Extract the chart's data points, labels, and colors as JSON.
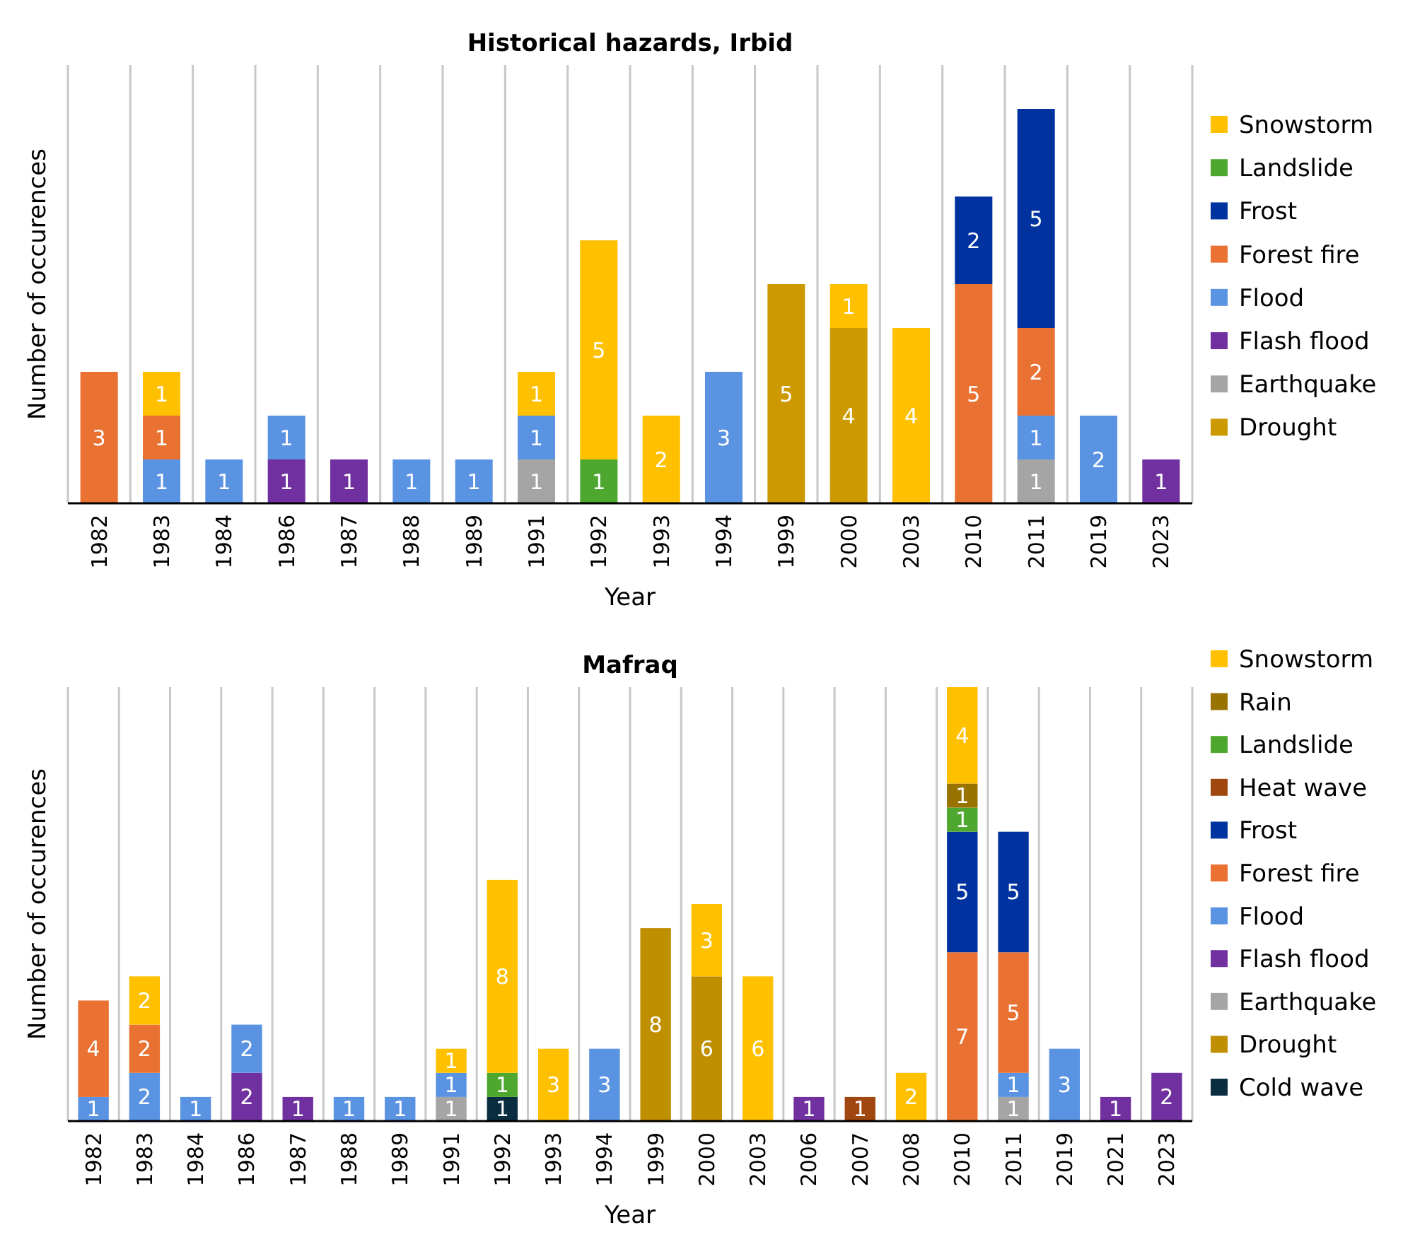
{
  "chart_data": [
    {
      "type": "bar",
      "title": "Historical hazards, Irbid",
      "xlabel": "Year",
      "ylabel": "Number of occurences",
      "stacked": true,
      "data_labels": true,
      "legend": "right",
      "grid": "x",
      "tick_labels": "x",
      "ylim": [
        0,
        10
      ],
      "categories": [
        "1982",
        "1983",
        "1984",
        "1986",
        "1987",
        "1988",
        "1989",
        "1991",
        "1992",
        "1993",
        "1994",
        "1999",
        "2000",
        "2003",
        "2010",
        "2011",
        "2019",
        "2023"
      ],
      "series": [
        {
          "name": "Drought",
          "color": "#cc9a00",
          "values": [
            null,
            null,
            null,
            null,
            null,
            null,
            null,
            null,
            null,
            null,
            null,
            5,
            4,
            null,
            null,
            null,
            null,
            null
          ]
        },
        {
          "name": "Earthquake",
          "color": "#a5a5a5",
          "values": [
            null,
            null,
            null,
            null,
            null,
            null,
            null,
            1,
            null,
            null,
            null,
            null,
            null,
            null,
            null,
            1,
            null,
            null
          ]
        },
        {
          "name": "Flash flood",
          "color": "#7030a0",
          "values": [
            null,
            null,
            null,
            1,
            1,
            null,
            null,
            null,
            null,
            null,
            null,
            null,
            null,
            null,
            null,
            null,
            null,
            1
          ]
        },
        {
          "name": "Flood",
          "color": "#5b93e3",
          "values": [
            null,
            1,
            1,
            1,
            null,
            1,
            1,
            1,
            null,
            null,
            3,
            null,
            null,
            null,
            null,
            1,
            2,
            null
          ]
        },
        {
          "name": "Forest fire",
          "color": "#e97132",
          "values": [
            3,
            1,
            null,
            null,
            null,
            null,
            null,
            null,
            null,
            null,
            null,
            null,
            null,
            null,
            5,
            2,
            null,
            null
          ]
        },
        {
          "name": "Frost",
          "color": "#0033a0",
          "values": [
            null,
            null,
            null,
            null,
            null,
            null,
            null,
            null,
            null,
            null,
            null,
            null,
            null,
            null,
            2,
            5,
            null,
            null
          ]
        },
        {
          "name": "Landslide",
          "color": "#4ea72e",
          "values": [
            null,
            null,
            null,
            null,
            null,
            null,
            null,
            null,
            1,
            null,
            null,
            null,
            null,
            null,
            null,
            null,
            null,
            null
          ]
        },
        {
          "name": "Snowstorm",
          "color": "#ffc000",
          "values": [
            null,
            1,
            null,
            null,
            null,
            null,
            null,
            1,
            5,
            2,
            null,
            null,
            1,
            4,
            null,
            null,
            null,
            null
          ]
        }
      ]
    },
    {
      "type": "bar",
      "title": "Mafraq",
      "xlabel": "Year",
      "ylabel": "Number of occurences",
      "stacked": true,
      "data_labels": true,
      "legend": "right",
      "grid": "x",
      "tick_labels": "x",
      "ylim": [
        0,
        18
      ],
      "categories": [
        "1982",
        "1983",
        "1984",
        "1986",
        "1987",
        "1988",
        "1989",
        "1991",
        "1992",
        "1993",
        "1994",
        "1999",
        "2000",
        "2003",
        "2006",
        "2007",
        "2008",
        "2010",
        "2011",
        "2019",
        "2021",
        "2023"
      ],
      "series": [
        {
          "name": "Cold wave",
          "color": "#0b2d40",
          "values": [
            null,
            null,
            null,
            null,
            null,
            null,
            null,
            null,
            1,
            null,
            null,
            null,
            null,
            null,
            null,
            null,
            null,
            null,
            null,
            null,
            null,
            null
          ]
        },
        {
          "name": "Drought",
          "color": "#bf8f00",
          "values": [
            null,
            null,
            null,
            null,
            null,
            null,
            null,
            null,
            null,
            null,
            null,
            8,
            6,
            null,
            null,
            null,
            null,
            null,
            null,
            null,
            null,
            null
          ]
        },
        {
          "name": "Earthquake",
          "color": "#a5a5a5",
          "values": [
            null,
            null,
            null,
            null,
            null,
            null,
            null,
            1,
            null,
            null,
            null,
            null,
            null,
            null,
            null,
            null,
            null,
            null,
            1,
            null,
            null,
            null
          ]
        },
        {
          "name": "Flash flood",
          "color": "#7030a0",
          "values": [
            null,
            null,
            null,
            2,
            1,
            null,
            null,
            null,
            null,
            null,
            null,
            null,
            null,
            null,
            1,
            null,
            null,
            null,
            null,
            null,
            1,
            2
          ]
        },
        {
          "name": "Flood",
          "color": "#5b93e3",
          "values": [
            1,
            2,
            1,
            2,
            null,
            1,
            1,
            1,
            null,
            null,
            3,
            null,
            null,
            null,
            null,
            null,
            null,
            null,
            1,
            3,
            null,
            null
          ]
        },
        {
          "name": "Forest fire",
          "color": "#e97132",
          "values": [
            4,
            2,
            null,
            null,
            null,
            null,
            null,
            null,
            null,
            null,
            null,
            null,
            null,
            null,
            null,
            null,
            null,
            7,
            5,
            null,
            null,
            null
          ]
        },
        {
          "name": "Frost",
          "color": "#0033a0",
          "values": [
            null,
            null,
            null,
            null,
            null,
            null,
            null,
            null,
            null,
            null,
            null,
            null,
            null,
            null,
            null,
            null,
            null,
            5,
            5,
            null,
            null,
            null
          ]
        },
        {
          "name": "Heat wave",
          "color": "#a0460f",
          "values": [
            null,
            null,
            null,
            null,
            null,
            null,
            null,
            null,
            null,
            null,
            null,
            null,
            null,
            null,
            null,
            1,
            null,
            null,
            null,
            null,
            null,
            null
          ]
        },
        {
          "name": "Landslide",
          "color": "#4ea72e",
          "values": [
            null,
            null,
            null,
            null,
            null,
            null,
            null,
            null,
            1,
            null,
            null,
            null,
            null,
            null,
            null,
            null,
            null,
            1,
            null,
            null,
            null,
            null
          ]
        },
        {
          "name": "Rain",
          "color": "#997300",
          "values": [
            null,
            null,
            null,
            null,
            null,
            null,
            null,
            null,
            null,
            null,
            null,
            null,
            null,
            null,
            null,
            null,
            null,
            1,
            null,
            null,
            null,
            null
          ]
        },
        {
          "name": "Snowstorm",
          "color": "#ffc000",
          "values": [
            null,
            2,
            null,
            null,
            null,
            null,
            null,
            1,
            8,
            3,
            null,
            null,
            3,
            6,
            null,
            null,
            2,
            4,
            null,
            null,
            null,
            null
          ]
        }
      ]
    }
  ]
}
